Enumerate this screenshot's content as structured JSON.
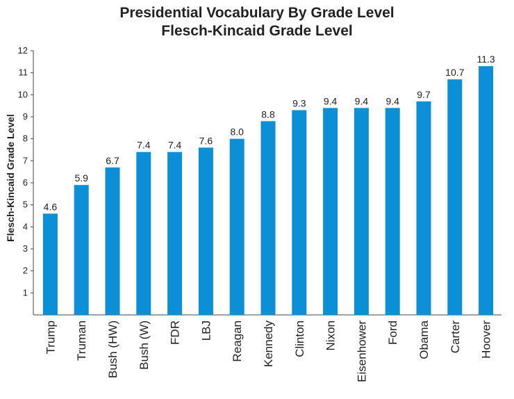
{
  "chart_data": {
    "type": "bar",
    "title": "Presidential Vocabulary By Grade Level",
    "subtitle": "Flesch-Kincaid Grade Level",
    "xlabel": "",
    "ylabel": "Flesch-Kincaid Grade Level",
    "ylim": [
      0,
      12
    ],
    "yticks": [
      1,
      2,
      3,
      4,
      5,
      6,
      7,
      8,
      9,
      10,
      11,
      12
    ],
    "grid": false,
    "legend": "none",
    "bar_color": "#0b8fd6",
    "categories": [
      "Trump",
      "Truman",
      "Bush (HW)",
      "Bush (W)",
      "FDR",
      "LBJ",
      "Reagan",
      "Kennedy",
      "Clinton",
      "Nixon",
      "Eisenhower",
      "Ford",
      "Obama",
      "Carter",
      "Hoover"
    ],
    "values": [
      4.6,
      5.9,
      6.7,
      7.4,
      7.4,
      7.6,
      8.0,
      8.8,
      9.3,
      9.4,
      9.4,
      9.4,
      9.7,
      10.7,
      11.3
    ],
    "value_labels": [
      "4.6",
      "5.9",
      "6.7",
      "7.4",
      "7.4",
      "7.6",
      "8.0",
      "8.8",
      "9.3",
      "9.4",
      "9.4",
      "9.4",
      "9.7",
      "10.7",
      "11.3"
    ]
  }
}
